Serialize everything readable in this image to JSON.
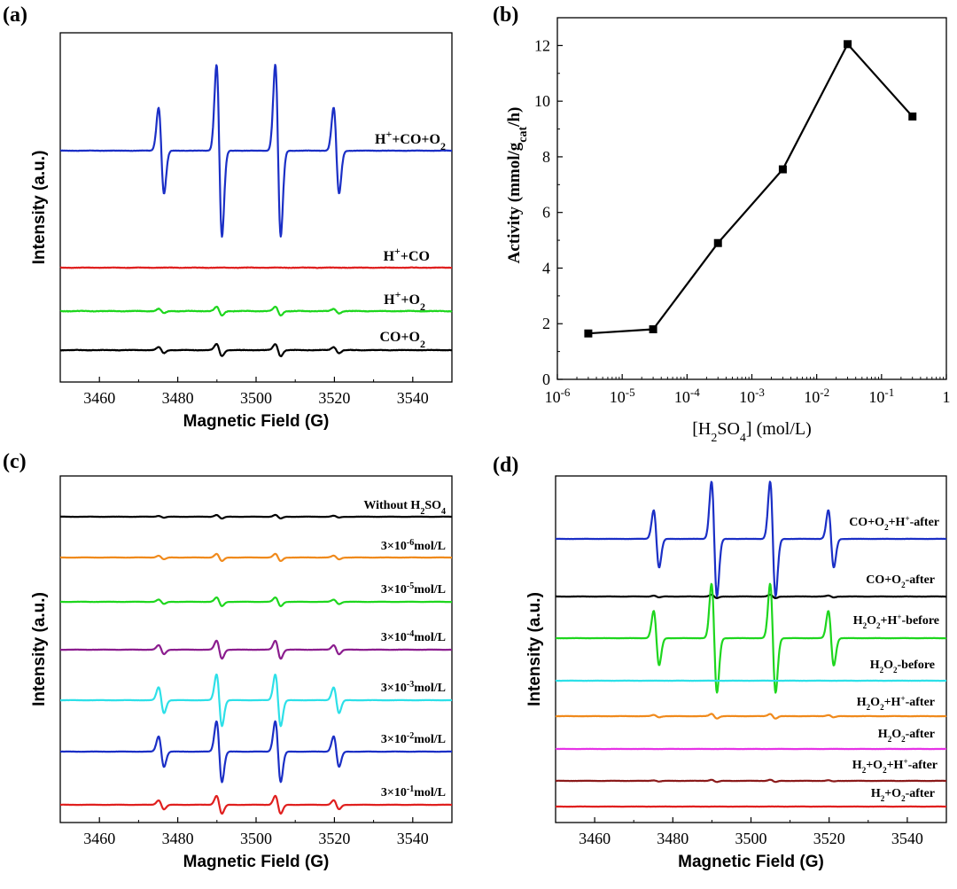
{
  "panels": [
    {
      "label": "(a)",
      "chart_data": {
        "type": "line",
        "title": "",
        "xlabel": "Magnetic Field (G)",
        "ylabel": "Intensity (a.u.)",
        "xlim": [
          3450,
          3550
        ],
        "xticks": [
          3460,
          3480,
          3500,
          3520,
          3540
        ],
        "series": [
          {
            "name": "H+CO+O2",
            "label_main": "H",
            "label_parts": [
              {
                "t": "H"
              },
              {
                "t": "+",
                "s": "sup"
              },
              {
                "t": "+CO+O"
              },
              {
                "t": "2",
                "s": "sub"
              }
            ],
            "color": "#1b2fc6",
            "amplitude": 1.0,
            "noise": 0.03
          },
          {
            "name": "H+CO",
            "label_parts": [
              {
                "t": "H"
              },
              {
                "t": "+",
                "s": "sup"
              },
              {
                "t": "+CO"
              }
            ],
            "color": "#e0201f",
            "amplitude": 0.0,
            "noise": 0.04
          },
          {
            "name": "H+O2",
            "label_parts": [
              {
                "t": "H"
              },
              {
                "t": "+",
                "s": "sup"
              },
              {
                "t": "+O"
              },
              {
                "t": "2",
                "s": "sub"
              }
            ],
            "color": "#1ed61e",
            "amplitude": 0.05,
            "noise": 0.05
          },
          {
            "name": "CO+O2",
            "label_parts": [
              {
                "t": "CO+O"
              },
              {
                "t": "2",
                "s": "sub"
              }
            ],
            "color": "#000000",
            "amplitude": 0.07,
            "noise": 0.04
          }
        ]
      }
    },
    {
      "label": "(b)",
      "chart_data": {
        "type": "line",
        "title": "",
        "xlabel": "[H2SO4] (mol/L)",
        "xlabel_parts": [
          {
            "t": "[H"
          },
          {
            "t": "2",
            "s": "sub"
          },
          {
            "t": "SO"
          },
          {
            "t": "4",
            "s": "sub"
          },
          {
            "t": "] (mol/L)"
          }
        ],
        "ylabel": "Activity (mmol/gcat/h)",
        "ylabel_parts": [
          {
            "t": "Activity (mmol/g"
          },
          {
            "t": "cat",
            "s": "sub"
          },
          {
            "t": "/h)"
          }
        ],
        "xscale": "log",
        "xlim": [
          1e-06,
          1
        ],
        "ylim": [
          0,
          13
        ],
        "yticks": [
          0,
          2,
          4,
          6,
          8,
          10,
          12
        ],
        "xtick_labels": [
          {
            "base": "10",
            "exp": "-6"
          },
          {
            "base": "10",
            "exp": "-5"
          },
          {
            "base": "10",
            "exp": "-4"
          },
          {
            "base": "10",
            "exp": "-3"
          },
          {
            "base": "10",
            "exp": "-2"
          },
          {
            "base": "10",
            "exp": "-1"
          },
          {
            "base": "1",
            "exp": ""
          }
        ],
        "x": [
          3e-06,
          3e-05,
          0.0003,
          0.003,
          0.03,
          0.3
        ],
        "values": [
          1.65,
          1.8,
          4.9,
          7.55,
          12.05,
          9.45
        ],
        "color": "#000000"
      }
    },
    {
      "label": "(c)",
      "chart_data": {
        "type": "line",
        "title": "",
        "xlabel": "Magnetic Field (G)",
        "ylabel": "Intensity (a.u.)",
        "xlim": [
          3450,
          3550
        ],
        "xticks": [
          3460,
          3480,
          3500,
          3520,
          3540
        ],
        "series": [
          {
            "name": "Without H2SO4",
            "label_parts": [
              {
                "t": "Without  H"
              },
              {
                "t": "2",
                "s": "sub"
              },
              {
                "t": "SO"
              },
              {
                "t": "4",
                "s": "sub"
              }
            ],
            "color": "#000000",
            "amplitude": 0.05,
            "noise": 0.03
          },
          {
            "name": "3x10-6mol/L",
            "label_parts": [
              {
                "t": "3×10"
              },
              {
                "t": "-6",
                "s": "sup"
              },
              {
                "t": "mol/L"
              }
            ],
            "color": "#f08a1c",
            "amplitude": 0.1,
            "noise": 0.03
          },
          {
            "name": "3x10-5mol/L",
            "label_parts": [
              {
                "t": "3×10"
              },
              {
                "t": "-5",
                "s": "sup"
              },
              {
                "t": "mol/L"
              }
            ],
            "color": "#1ed61e",
            "amplitude": 0.12,
            "noise": 0.03
          },
          {
            "name": "3x10-4mol/L",
            "label_parts": [
              {
                "t": "3×10"
              },
              {
                "t": "-4",
                "s": "sup"
              },
              {
                "t": "mol/L"
              }
            ],
            "color": "#8b1d8e",
            "amplitude": 0.25,
            "noise": 0.03
          },
          {
            "name": "3x10-3mol/L",
            "label_parts": [
              {
                "t": "3×10"
              },
              {
                "t": "-3",
                "s": "sup"
              },
              {
                "t": "mol/L"
              }
            ],
            "color": "#2de0e8",
            "amplitude": 0.72,
            "noise": 0.03
          },
          {
            "name": "3x10-2mol/L",
            "label_parts": [
              {
                "t": "3×10"
              },
              {
                "t": "-2",
                "s": "sup"
              },
              {
                "t": "mol/L"
              }
            ],
            "color": "#1b2fc6",
            "amplitude": 0.85,
            "noise": 0.03
          },
          {
            "name": "3x10-1mol/L",
            "label_parts": [
              {
                "t": "3×10"
              },
              {
                "t": "-1",
                "s": "sup"
              },
              {
                "t": "mol/L"
              }
            ],
            "color": "#e0201f",
            "amplitude": 0.25,
            "noise": 0.03
          }
        ]
      }
    },
    {
      "label": "(d)",
      "chart_data": {
        "type": "line",
        "title": "",
        "xlabel": "Magnetic Field (G)",
        "ylabel": "Intensity (a.u.)",
        "xlim": [
          3450,
          3550
        ],
        "xticks": [
          3460,
          3480,
          3500,
          3520,
          3540
        ],
        "series": [
          {
            "name": "CO+O2+H+-after",
            "label_parts": [
              {
                "t": "CO+O"
              },
              {
                "t": "2",
                "s": "sub"
              },
              {
                "t": "+H"
              },
              {
                "t": "+",
                "s": "sup"
              },
              {
                "t": "-after"
              }
            ],
            "color": "#1b2fc6",
            "amplitude": 1.0,
            "noise": 0.02
          },
          {
            "name": "CO+O2-after",
            "label_parts": [
              {
                "t": "CO+O"
              },
              {
                "t": "2",
                "s": "sub"
              },
              {
                "t": "-after"
              }
            ],
            "color": "#000000",
            "amplitude": 0.03,
            "noise": 0.03
          },
          {
            "name": "H2O2+H+-before",
            "label_parts": [
              {
                "t": "H"
              },
              {
                "t": "2",
                "s": "sub"
              },
              {
                "t": "O"
              },
              {
                "t": "2",
                "s": "sub"
              },
              {
                "t": "+H"
              },
              {
                "t": "+",
                "s": "sup"
              },
              {
                "t": "-before"
              }
            ],
            "color": "#1ed61e",
            "amplitude": 0.95,
            "noise": 0.02
          },
          {
            "name": "H2O2-before",
            "label_parts": [
              {
                "t": "H"
              },
              {
                "t": "2",
                "s": "sub"
              },
              {
                "t": "O"
              },
              {
                "t": "2",
                "s": "sub"
              },
              {
                "t": "-before"
              }
            ],
            "color": "#2de0e8",
            "amplitude": 0.0,
            "noise": 0.02
          },
          {
            "name": "H2O2+H+-after",
            "label_parts": [
              {
                "t": "H"
              },
              {
                "t": "2",
                "s": "sub"
              },
              {
                "t": "O"
              },
              {
                "t": "2",
                "s": "sub"
              },
              {
                "t": "+H"
              },
              {
                "t": "+",
                "s": "sup"
              },
              {
                "t": "-after"
              }
            ],
            "color": "#f08a1c",
            "amplitude": 0.04,
            "noise": 0.03
          },
          {
            "name": "H2O2-after",
            "label_parts": [
              {
                "t": "H"
              },
              {
                "t": "2",
                "s": "sub"
              },
              {
                "t": "O"
              },
              {
                "t": "2",
                "s": "sub"
              },
              {
                "t": "-after"
              }
            ],
            "color": "#e633e6",
            "amplitude": 0.0,
            "noise": 0.02
          },
          {
            "name": "H2+O2+H+-after",
            "label_parts": [
              {
                "t": "H"
              },
              {
                "t": "2",
                "s": "sub"
              },
              {
                "t": "+O"
              },
              {
                "t": "2",
                "s": "sub"
              },
              {
                "t": "+H"
              },
              {
                "t": "+",
                "s": "sup"
              },
              {
                "t": "-after"
              }
            ],
            "color": "#8b1a1a",
            "amplitude": 0.02,
            "noise": 0.03
          },
          {
            "name": "H2+O2-after",
            "label_parts": [
              {
                "t": "H"
              },
              {
                "t": "2",
                "s": "sub"
              },
              {
                "t": "+O"
              },
              {
                "t": "2",
                "s": "sub"
              },
              {
                "t": "-after"
              }
            ],
            "color": "#e0201f",
            "amplitude": 0.0,
            "noise": 0.02
          }
        ]
      }
    }
  ]
}
